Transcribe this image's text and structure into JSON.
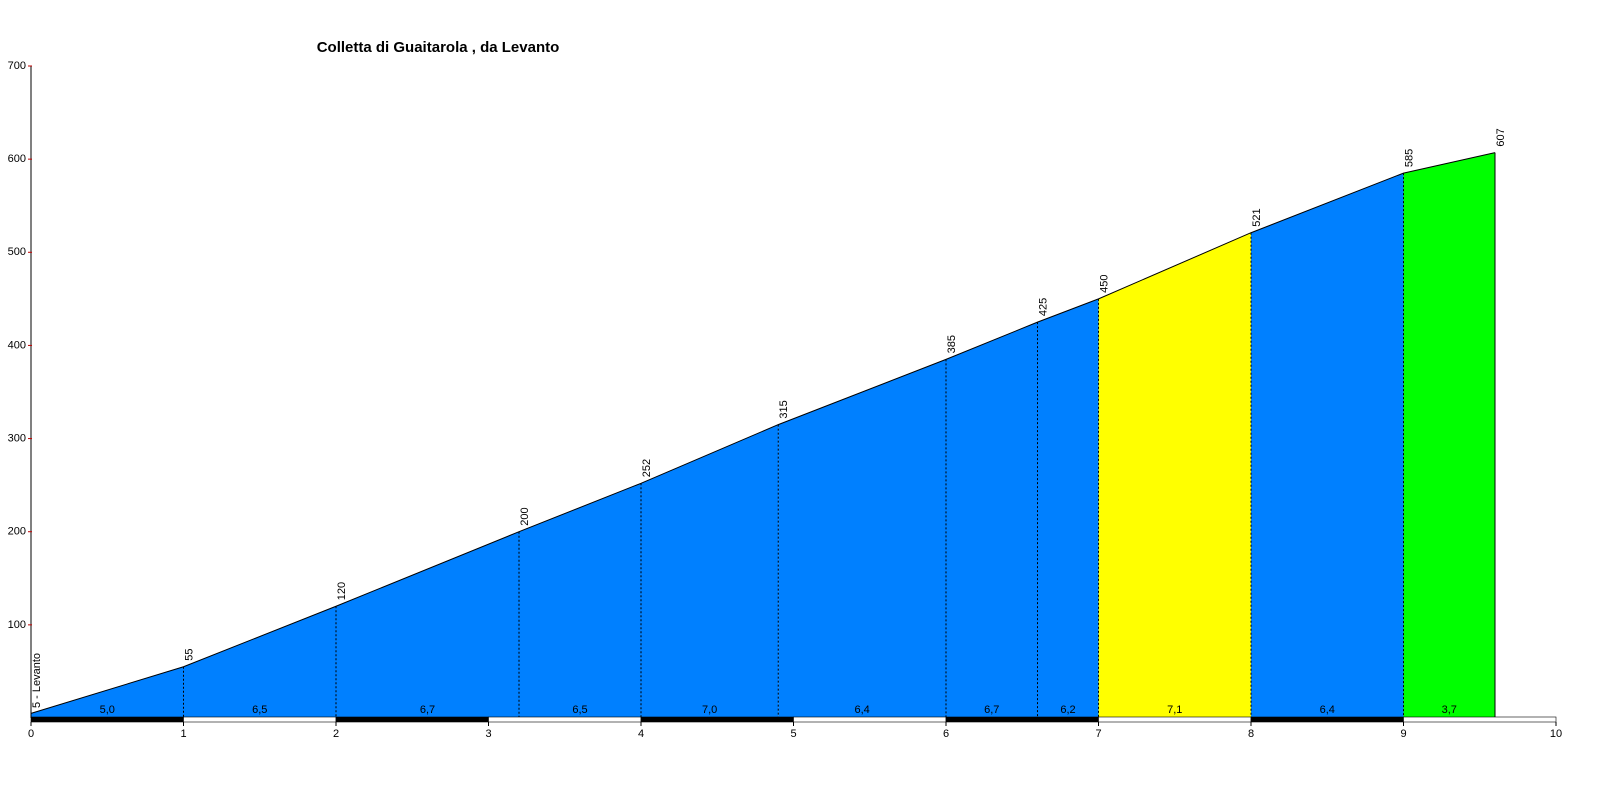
{
  "chart_data": {
    "type": "area",
    "title": "Colletta di Guaitarola , da Levanto",
    "x": [
      0,
      1,
      2,
      3.2,
      4,
      4.9,
      6,
      6.6,
      7,
      8,
      9,
      9.6
    ],
    "values": [
      5,
      55,
      120,
      200,
      252,
      315,
      385,
      425,
      450,
      521,
      585,
      607
    ],
    "value_labels": [
      "5 - Levanto",
      "55",
      "120",
      "200",
      "252",
      "315",
      "385",
      "425",
      "450",
      "521",
      "585",
      "607"
    ],
    "gradients": [
      "5,0",
      "6,5",
      "6,7",
      "6,5",
      "7,0",
      "6,4",
      "6,7",
      "6,2",
      "7,1",
      "6,4",
      "3,7"
    ],
    "colors": [
      "#0080ff",
      "#0080ff",
      "#0080ff",
      "#0080ff",
      "#0080ff",
      "#0080ff",
      "#0080ff",
      "#0080ff",
      "#ffff00",
      "#0080ff",
      "#00ff00"
    ],
    "xlim": [
      0,
      10
    ],
    "ylim": [
      0,
      700
    ],
    "xticks": [
      0,
      1,
      2,
      3,
      4,
      5,
      6,
      7,
      8,
      9,
      10
    ],
    "yticks": [
      100,
      200,
      300,
      400,
      500,
      600,
      700
    ]
  }
}
